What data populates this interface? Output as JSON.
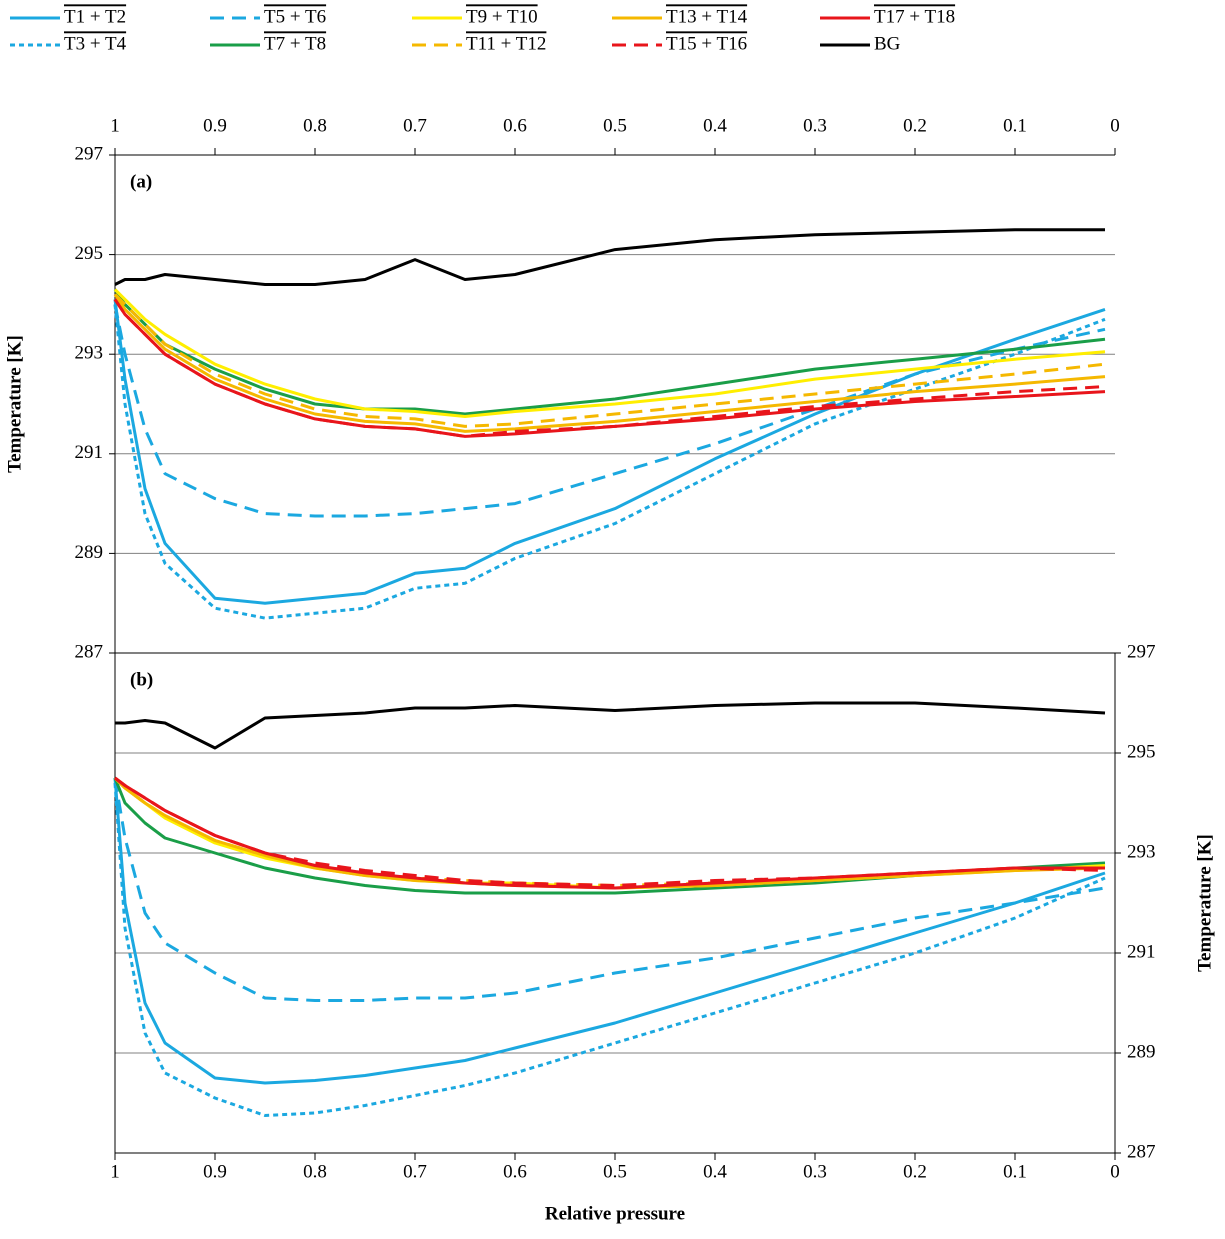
{
  "chart_data": [
    {
      "type": "line",
      "label": "(a)",
      "ylabel": "Temperature [K]",
      "x": [
        1,
        0.99,
        0.97,
        0.95,
        0.9,
        0.85,
        0.8,
        0.75,
        0.7,
        0.65,
        0.6,
        0.5,
        0.4,
        0.3,
        0.2,
        0.1,
        0.01
      ],
      "xlim": [
        1,
        0
      ],
      "xticks": [
        1,
        0.9,
        0.8,
        0.7,
        0.6,
        0.5,
        0.4,
        0.3,
        0.2,
        0.1,
        0
      ],
      "ylim": [
        287,
        297
      ],
      "yticks": [
        287,
        289,
        291,
        293,
        295,
        297
      ],
      "grid": true,
      "series": [
        {
          "name": "T1 + T2",
          "color": "#1ba8e0",
          "style": "solid",
          "values": [
            294.1,
            292.5,
            290.3,
            289.2,
            288.1,
            288.0,
            288.1,
            288.2,
            288.6,
            288.7,
            289.2,
            289.9,
            290.9,
            291.8,
            292.6,
            293.3,
            293.9
          ]
        },
        {
          "name": "T3 + T4",
          "color": "#1ba8e0",
          "style": "dotted",
          "values": [
            294.0,
            292.0,
            289.8,
            288.8,
            287.9,
            287.7,
            287.8,
            287.9,
            288.3,
            288.4,
            288.9,
            289.6,
            290.6,
            291.6,
            292.3,
            293.0,
            293.7
          ]
        },
        {
          "name": "T5 + T6",
          "color": "#1ba8e0",
          "style": "dashed",
          "values": [
            294.0,
            293.0,
            291.5,
            290.6,
            290.1,
            289.8,
            289.75,
            289.75,
            289.8,
            289.9,
            290.0,
            290.6,
            291.2,
            291.9,
            292.6,
            293.1,
            293.5
          ]
        },
        {
          "name": "T7 + T8",
          "color": "#1a9e48",
          "style": "solid",
          "values": [
            294.3,
            294.0,
            293.6,
            293.2,
            292.7,
            292.3,
            292.0,
            291.9,
            291.9,
            291.8,
            291.9,
            292.1,
            292.4,
            292.7,
            292.9,
            293.1,
            293.3
          ]
        },
        {
          "name": "T9 + T10",
          "color": "#ffee00",
          "style": "solid",
          "values": [
            294.3,
            294.1,
            293.7,
            293.4,
            292.8,
            292.4,
            292.1,
            291.9,
            291.85,
            291.75,
            291.85,
            292.0,
            292.2,
            292.5,
            292.7,
            292.9,
            293.05
          ]
        },
        {
          "name": "T11 + T12",
          "color": "#f5b800",
          "style": "dashed",
          "values": [
            294.2,
            294.0,
            293.6,
            293.2,
            292.6,
            292.2,
            291.9,
            291.75,
            291.7,
            291.55,
            291.6,
            291.8,
            292.0,
            292.2,
            292.4,
            292.6,
            292.8
          ]
        },
        {
          "name": "T13 + T14",
          "color": "#f5b800",
          "style": "solid",
          "values": [
            294.2,
            293.9,
            293.5,
            293.1,
            292.5,
            292.1,
            291.8,
            291.65,
            291.6,
            291.45,
            291.5,
            291.65,
            291.85,
            292.05,
            292.25,
            292.4,
            292.55
          ]
        },
        {
          "name": "T15 + T16",
          "color": "#e8151b",
          "style": "dashed",
          "values": [
            294.1,
            293.8,
            293.4,
            293.0,
            292.4,
            292.0,
            291.7,
            291.55,
            291.5,
            291.35,
            291.45,
            291.55,
            291.75,
            291.95,
            292.1,
            292.25,
            292.35
          ]
        },
        {
          "name": "T17 + T18",
          "color": "#e8151b",
          "style": "solid",
          "values": [
            294.1,
            293.8,
            293.4,
            293.0,
            292.4,
            292.0,
            291.7,
            291.55,
            291.5,
            291.35,
            291.4,
            291.55,
            291.7,
            291.9,
            292.05,
            292.15,
            292.25
          ]
        },
        {
          "name": "BG",
          "color": "#000000",
          "style": "solid",
          "values": [
            294.4,
            294.5,
            294.5,
            294.6,
            294.5,
            294.4,
            294.4,
            294.5,
            294.9,
            294.5,
            294.6,
            295.1,
            295.3,
            295.4,
            295.45,
            295.5,
            295.5
          ]
        }
      ]
    },
    {
      "type": "line",
      "label": "(b)",
      "ylabel": "Temperature [K]",
      "xlabel": "Relative pressure",
      "x": [
        1,
        0.99,
        0.97,
        0.95,
        0.9,
        0.85,
        0.8,
        0.75,
        0.7,
        0.65,
        0.6,
        0.5,
        0.4,
        0.3,
        0.2,
        0.1,
        0.01
      ],
      "xlim": [
        1,
        0
      ],
      "xticks": [
        1,
        0.9,
        0.8,
        0.7,
        0.6,
        0.5,
        0.4,
        0.3,
        0.2,
        0.1,
        0
      ],
      "ylim": [
        287,
        297
      ],
      "yticks": [
        287,
        289,
        291,
        293,
        295,
        297
      ],
      "grid": true,
      "series": [
        {
          "color": "#1ba8e0",
          "style": "solid",
          "values": [
            294.5,
            292.0,
            290.0,
            289.2,
            288.5,
            288.4,
            288.45,
            288.55,
            288.7,
            288.85,
            289.1,
            289.6,
            290.2,
            290.8,
            291.4,
            292.0,
            292.6
          ]
        },
        {
          "color": "#1ba8e0",
          "style": "dotted",
          "values": [
            294.4,
            291.5,
            289.4,
            288.6,
            288.1,
            287.75,
            287.8,
            287.95,
            288.15,
            288.35,
            288.6,
            289.2,
            289.8,
            290.4,
            291.0,
            291.7,
            292.5
          ]
        },
        {
          "color": "#1ba8e0",
          "style": "dashed",
          "values": [
            294.5,
            293.3,
            291.8,
            291.2,
            290.6,
            290.1,
            290.05,
            290.05,
            290.1,
            290.1,
            290.2,
            290.6,
            290.9,
            291.3,
            291.7,
            292.0,
            292.3
          ]
        },
        {
          "color": "#1a9e48",
          "style": "solid",
          "values": [
            294.5,
            294.0,
            293.6,
            293.3,
            293.0,
            292.7,
            292.5,
            292.35,
            292.25,
            292.2,
            292.2,
            292.2,
            292.3,
            292.4,
            292.55,
            292.7,
            292.8
          ]
        },
        {
          "color": "#ffee00",
          "style": "solid",
          "values": [
            294.5,
            294.3,
            294.0,
            293.7,
            293.2,
            292.9,
            292.7,
            292.55,
            292.45,
            292.4,
            292.4,
            292.3,
            292.35,
            292.45,
            292.55,
            292.65,
            292.75
          ]
        },
        {
          "color": "#f5b800",
          "style": "dashed",
          "values": [
            294.5,
            294.3,
            294.0,
            293.75,
            293.25,
            292.95,
            292.75,
            292.6,
            292.5,
            292.45,
            292.4,
            292.35,
            292.4,
            292.5,
            292.6,
            292.7,
            292.7
          ]
        },
        {
          "color": "#f5b800",
          "style": "solid",
          "values": [
            294.5,
            294.3,
            294.0,
            293.75,
            293.25,
            292.95,
            292.7,
            292.55,
            292.45,
            292.4,
            292.35,
            292.3,
            292.35,
            292.45,
            292.55,
            292.65,
            292.7
          ]
        },
        {
          "color": "#e8151b",
          "style": "dashed",
          "values": [
            294.5,
            294.35,
            294.1,
            293.85,
            293.35,
            293.0,
            292.8,
            292.65,
            292.55,
            292.45,
            292.4,
            292.35,
            292.45,
            292.5,
            292.6,
            292.7,
            292.65
          ]
        },
        {
          "color": "#e8151b",
          "style": "solid",
          "values": [
            294.5,
            294.35,
            294.1,
            293.85,
            293.35,
            293.0,
            292.75,
            292.6,
            292.5,
            292.4,
            292.35,
            292.3,
            292.4,
            292.5,
            292.6,
            292.7,
            292.7
          ]
        },
        {
          "color": "#000000",
          "style": "solid",
          "values": [
            295.6,
            295.6,
            295.65,
            295.6,
            295.1,
            295.7,
            295.75,
            295.8,
            295.9,
            295.9,
            295.95,
            295.85,
            295.95,
            296.0,
            296.0,
            295.9,
            295.8
          ]
        }
      ]
    }
  ]
}
